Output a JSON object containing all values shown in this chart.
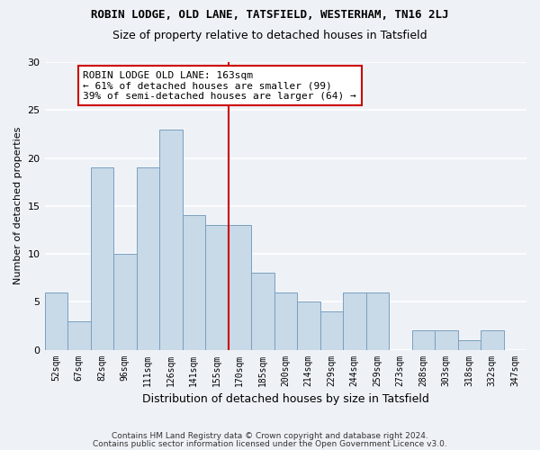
{
  "title": "ROBIN LODGE, OLD LANE, TATSFIELD, WESTERHAM, TN16 2LJ",
  "subtitle": "Size of property relative to detached houses in Tatsfield",
  "xlabel": "Distribution of detached houses by size in Tatsfield",
  "ylabel": "Number of detached properties",
  "footer_line1": "Contains HM Land Registry data © Crown copyright and database right 2024.",
  "footer_line2": "Contains public sector information licensed under the Open Government Licence v3.0.",
  "categories": [
    "52sqm",
    "67sqm",
    "82sqm",
    "96sqm",
    "111sqm",
    "126sqm",
    "141sqm",
    "155sqm",
    "170sqm",
    "185sqm",
    "200sqm",
    "214sqm",
    "229sqm",
    "244sqm",
    "259sqm",
    "273sqm",
    "288sqm",
    "303sqm",
    "318sqm",
    "332sqm",
    "347sqm"
  ],
  "values": [
    6,
    3,
    19,
    10,
    19,
    23,
    14,
    13,
    13,
    8,
    6,
    5,
    4,
    6,
    6,
    0,
    2,
    2,
    1,
    2,
    0
  ],
  "bar_color": "#c8d9e8",
  "bar_edge_color": "#7aa0bf",
  "annotation_line1": "ROBIN LODGE OLD LANE: 163sqm",
  "annotation_line2": "← 61% of detached houses are smaller (99)",
  "annotation_line3": "39% of semi-detached houses are larger (64) →",
  "annotation_box_color": "#ffffff",
  "annotation_box_edge_color": "#cc0000",
  "vline_color": "#cc0000",
  "background_color": "#eef2f7",
  "grid_color": "#ffffff",
  "ylim": [
    0,
    30
  ],
  "yticks": [
    0,
    5,
    10,
    15,
    20,
    25,
    30
  ],
  "vline_x": 7.5
}
